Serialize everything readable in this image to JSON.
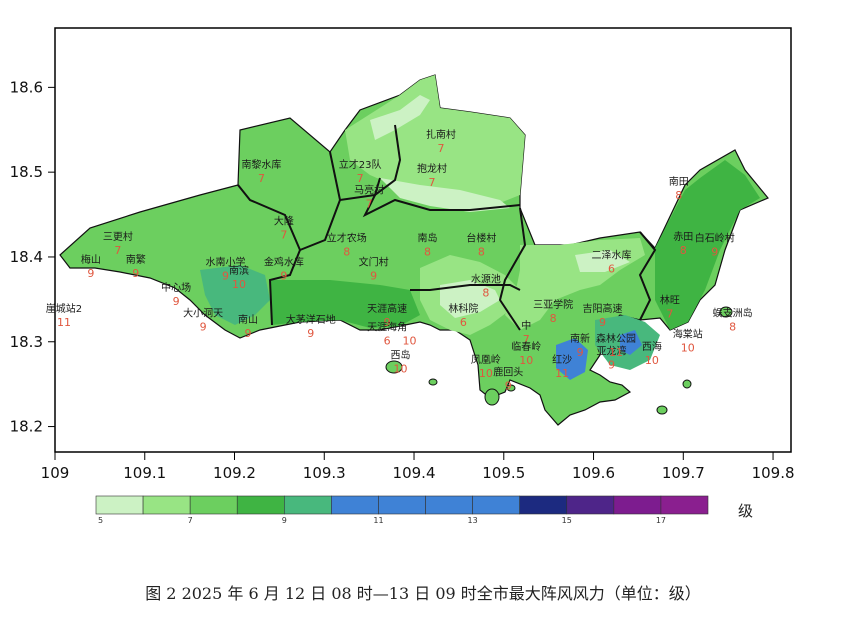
{
  "map": {
    "x_ticks": [
      "109",
      "109.1",
      "109.2",
      "109.3",
      "109.4",
      "109.5",
      "109.6",
      "109.7",
      "109.8"
    ],
    "y_ticks": [
      "18.6",
      "18.5",
      "18.4",
      "18.3",
      "18.2"
    ],
    "x_range": [
      109.0,
      109.82
    ],
    "y_range": [
      18.17,
      18.67
    ],
    "stations": [
      {
        "name": "扎南村",
        "value": "7",
        "lon": 109.43,
        "lat": 18.54
      },
      {
        "name": "抱龙村",
        "value": "7",
        "lon": 109.42,
        "lat": 18.5
      },
      {
        "name": "立才23队",
        "value": "7",
        "lon": 109.34,
        "lat": 18.505
      },
      {
        "name": "马亮村",
        "value": "7",
        "lon": 109.35,
        "lat": 18.475
      },
      {
        "name": "南黎水库",
        "value": "7",
        "lon": 109.23,
        "lat": 18.505
      },
      {
        "name": "大隆",
        "value": "7",
        "lon": 109.255,
        "lat": 18.438
      },
      {
        "name": "三更村",
        "value": "7",
        "lon": 109.07,
        "lat": 18.42
      },
      {
        "name": "立才农场",
        "value": "8",
        "lon": 109.325,
        "lat": 18.418
      },
      {
        "name": "南岛",
        "value": "8",
        "lon": 109.415,
        "lat": 18.418
      },
      {
        "name": "台楼村",
        "value": "8",
        "lon": 109.475,
        "lat": 18.418
      },
      {
        "name": "梅山",
        "value": "9",
        "lon": 109.04,
        "lat": 18.393
      },
      {
        "name": "南繁",
        "value": "9",
        "lon": 109.09,
        "lat": 18.393
      },
      {
        "name": "水南小学",
        "value": "9",
        "lon": 109.19,
        "lat": 18.39
      },
      {
        "name": "南滨",
        "value": "10",
        "lon": 109.205,
        "lat": 18.38
      },
      {
        "name": "金鸡水库",
        "value": "9",
        "lon": 109.255,
        "lat": 18.39
      },
      {
        "name": "文门村",
        "value": "9",
        "lon": 109.355,
        "lat": 18.39
      },
      {
        "name": "中心场",
        "value": "9",
        "lon": 109.135,
        "lat": 18.36
      },
      {
        "name": "崖城站2",
        "value": "11",
        "lon": 109.01,
        "lat": 18.335
      },
      {
        "name": "大小洞天",
        "value": "9",
        "lon": 109.165,
        "lat": 18.33
      },
      {
        "name": "南山",
        "value": "9",
        "lon": 109.215,
        "lat": 18.322
      },
      {
        "name": "大茅洋石地",
        "value": "9",
        "lon": 109.285,
        "lat": 18.322
      },
      {
        "name": "天涯高速",
        "value": "9",
        "lon": 109.37,
        "lat": 18.335
      },
      {
        "name": "天涯海角",
        "value": "6",
        "lon": 109.37,
        "lat": 18.313
      },
      {
        "name": "10",
        "value": "10",
        "lon": 109.395,
        "lat": 18.313
      },
      {
        "name": "林科院",
        "value": "6",
        "lon": 109.455,
        "lat": 18.335
      },
      {
        "name": "水源池",
        "value": "8",
        "lon": 109.48,
        "lat": 18.37
      },
      {
        "name": "三亚学院",
        "value": "8",
        "lon": 109.555,
        "lat": 18.34
      },
      {
        "name": "吉阳高速",
        "value": "9",
        "lon": 109.61,
        "lat": 18.335
      },
      {
        "name": "二泽水库",
        "value": "6",
        "lon": 109.62,
        "lat": 18.398
      },
      {
        "name": "南田",
        "value": "8",
        "lon": 109.695,
        "lat": 18.485
      },
      {
        "name": "赤田",
        "value": "8",
        "lon": 109.7,
        "lat": 18.42
      },
      {
        "name": "白石岭村",
        "value": "9",
        "lon": 109.735,
        "lat": 18.418
      },
      {
        "name": "林旺",
        "value": "7",
        "lon": 109.685,
        "lat": 18.345
      },
      {
        "name": "蜈支洲岛",
        "value": "8",
        "lon": 109.755,
        "lat": 18.33
      },
      {
        "name": "海棠站",
        "value": "10",
        "lon": 109.705,
        "lat": 18.305
      },
      {
        "name": "南新",
        "value": "9",
        "lon": 109.585,
        "lat": 18.3
      },
      {
        "name": "亚龙湾",
        "value": "9",
        "lon": 109.62,
        "lat": 18.285
      },
      {
        "name": "森林公园",
        "value": "11",
        "lon": 109.625,
        "lat": 18.3
      },
      {
        "name": "西海",
        "value": "10",
        "lon": 109.665,
        "lat": 18.29
      },
      {
        "name": "中",
        "value": "7",
        "lon": 109.525,
        "lat": 18.315
      },
      {
        "name": "临春岭",
        "value": "10",
        "lon": 109.525,
        "lat": 18.29
      },
      {
        "name": "红沙",
        "value": "11",
        "lon": 109.565,
        "lat": 18.275
      },
      {
        "name": "凤凰岭",
        "value": "10",
        "lon": 109.48,
        "lat": 18.275
      },
      {
        "name": "鹿回头",
        "value": "9",
        "lon": 109.505,
        "lat": 18.26
      },
      {
        "name": "西岛",
        "value": "10",
        "lon": 109.385,
        "lat": 18.28
      }
    ]
  },
  "legend": {
    "labels": [
      "5",
      "7",
      "9",
      "11",
      "13",
      "15",
      "17"
    ],
    "unit": "级",
    "colors": [
      "#ccf2c4",
      "#98e484",
      "#6ccf5f",
      "#3fb443",
      "#48b87d",
      "#3f82d6",
      "#3f82d6",
      "#3f82d6",
      "#3f82d6",
      "#1c2a80",
      "#4e2589",
      "#7d1c8f",
      "#8a1f8f"
    ]
  },
  "caption": "图 2  2025 年 6 月 12 日 08 时—13 日 09 时全市最大阵风风力（单位：级）"
}
